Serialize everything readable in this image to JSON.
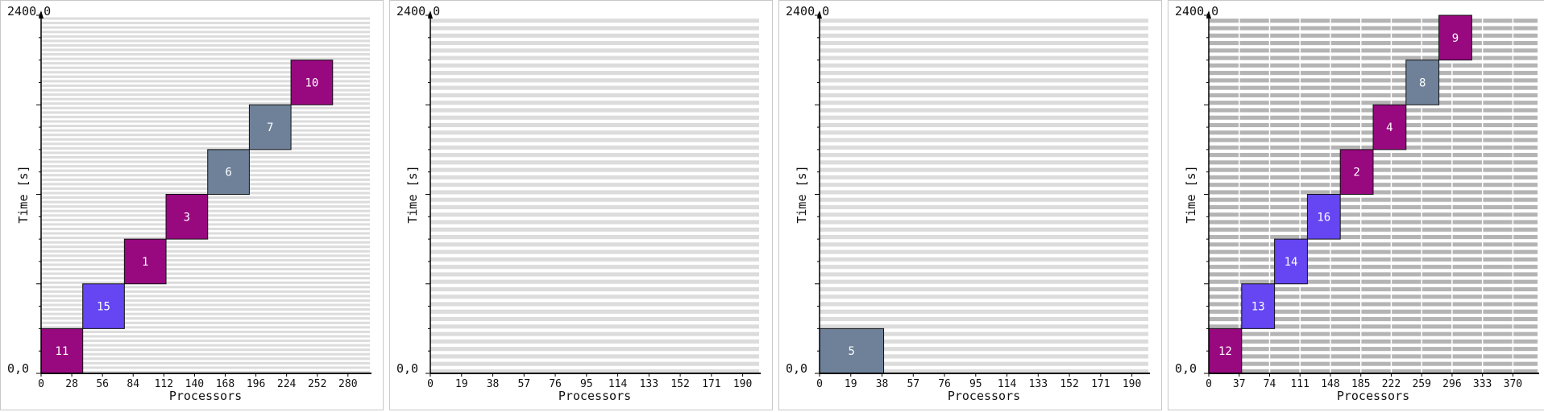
{
  "colors": {
    "magenta": "#98087f",
    "violet": "#6546f2",
    "slate": "#6e8199",
    "axis": "#000000",
    "grid_light": "#dcdcdc",
    "grid_dark": "#b4b4b4"
  },
  "time_range": [
    0,
    2400
  ],
  "panels": [
    {
      "y_top_label": "2400,0",
      "y_origin_label": "0,0",
      "y_axis_label": "Time [s]",
      "x_axis_label": "Processors",
      "x_ticks": [
        "0",
        "28",
        "56",
        "84",
        "112",
        "140",
        "168",
        "196",
        "224",
        "252",
        "280"
      ],
      "x_max": 300,
      "stripes": 80,
      "stripe_color": "grid_light",
      "jobs": [
        {
          "label": "11",
          "start": 0,
          "end": 300,
          "p0": 0,
          "p1": 38,
          "color": "magenta"
        },
        {
          "label": "15",
          "start": 300,
          "end": 600,
          "p0": 38,
          "p1": 76,
          "color": "violet"
        },
        {
          "label": "1",
          "start": 600,
          "end": 900,
          "p0": 76,
          "p1": 114,
          "color": "magenta"
        },
        {
          "label": "3",
          "start": 900,
          "end": 1200,
          "p0": 114,
          "p1": 152,
          "color": "magenta"
        },
        {
          "label": "6",
          "start": 1200,
          "end": 1500,
          "p0": 152,
          "p1": 190,
          "color": "slate"
        },
        {
          "label": "7",
          "start": 1500,
          "end": 1800,
          "p0": 190,
          "p1": 228,
          "color": "slate"
        },
        {
          "label": "10",
          "start": 1800,
          "end": 2100,
          "p0": 228,
          "p1": 266,
          "color": "magenta"
        }
      ]
    },
    {
      "y_top_label": "2400,0",
      "y_origin_label": "0,0",
      "y_axis_label": "Time [s]",
      "x_axis_label": "Processors",
      "x_ticks": [
        "0",
        "19",
        "38",
        "57",
        "76",
        "95",
        "114",
        "133",
        "152",
        "171",
        "190"
      ],
      "x_max": 200,
      "stripes": 48,
      "stripe_color": "grid_light",
      "jobs": []
    },
    {
      "y_top_label": "2400,0",
      "y_origin_label": "0,0",
      "y_axis_label": "Time [s]",
      "x_axis_label": "Processors",
      "x_ticks": [
        "0",
        "19",
        "38",
        "57",
        "76",
        "95",
        "114",
        "133",
        "152",
        "171",
        "190"
      ],
      "x_max": 200,
      "stripes": 48,
      "stripe_color": "grid_light",
      "jobs": [
        {
          "label": "5",
          "start": 0,
          "end": 300,
          "p0": 0,
          "p1": 39,
          "color": "slate"
        }
      ]
    },
    {
      "y_top_label": "2400,0",
      "y_origin_label": "0,0",
      "y_axis_label": "Time [s]",
      "x_axis_label": "Processors",
      "x_ticks": [
        "0",
        "37",
        "74",
        "111",
        "148",
        "185",
        "222",
        "259",
        "296",
        "333",
        "370"
      ],
      "x_max": 400,
      "stripes": 48,
      "stripe_color": "grid_dark",
      "jobs": [
        {
          "label": "12",
          "start": 0,
          "end": 300,
          "p0": 0,
          "p1": 40,
          "color": "magenta"
        },
        {
          "label": "13",
          "start": 300,
          "end": 600,
          "p0": 40,
          "p1": 80,
          "color": "violet"
        },
        {
          "label": "14",
          "start": 600,
          "end": 900,
          "p0": 80,
          "p1": 120,
          "color": "violet"
        },
        {
          "label": "16",
          "start": 900,
          "end": 1200,
          "p0": 120,
          "p1": 160,
          "color": "violet"
        },
        {
          "label": "2",
          "start": 1200,
          "end": 1500,
          "p0": 160,
          "p1": 200,
          "color": "magenta"
        },
        {
          "label": "4",
          "start": 1500,
          "end": 1800,
          "p0": 200,
          "p1": 240,
          "color": "magenta"
        },
        {
          "label": "8",
          "start": 1800,
          "end": 2100,
          "p0": 240,
          "p1": 280,
          "color": "slate"
        },
        {
          "label": "9",
          "start": 2100,
          "end": 2400,
          "p0": 280,
          "p1": 320,
          "color": "magenta"
        }
      ]
    }
  ]
}
